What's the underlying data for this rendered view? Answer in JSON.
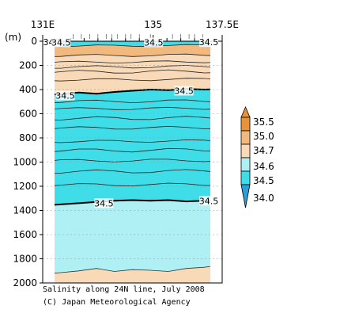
{
  "chart_data": {
    "type": "contour",
    "x_ticks": [
      "131E",
      "135",
      "137.5E"
    ],
    "y_unit": "(m)",
    "y_ticks": [
      0,
      200,
      400,
      600,
      800,
      1000,
      1200,
      1400,
      1600,
      1800,
      2000
    ],
    "x_range_deg": [
      131,
      137.5
    ],
    "y_range_m": [
      0,
      2000
    ],
    "bands": [
      {
        "label": "35.5",
        "color": "#e8933a"
      },
      {
        "label": "35.0",
        "color": "#f2b97f"
      },
      {
        "label": "34.7",
        "color": "#f8d9b8"
      },
      {
        "label": "34.6",
        "color": "#aef0f3"
      },
      {
        "label": "34.5",
        "color": "#3fdde8"
      },
      {
        "label": "34.0",
        "color": "#2f9ed9"
      }
    ],
    "contour_labels": [
      {
        "text": "34.5",
        "lon": 131.05,
        "depth": 5
      },
      {
        "text": "34.5",
        "lon": 131.35,
        "depth": 10
      },
      {
        "text": "34.5",
        "lon": 134.7,
        "depth": 10
      },
      {
        "text": "34.5",
        "lon": 136.7,
        "depth": 8
      },
      {
        "text": "34.5",
        "lon": 131.5,
        "depth": 450
      },
      {
        "text": "34.5",
        "lon": 135.8,
        "depth": 410
      },
      {
        "text": "34.5",
        "lon": 132.9,
        "depth": 1340
      },
      {
        "text": "34.5",
        "lon": 136.7,
        "depth": 1320
      }
    ],
    "salinity_345_upper_depth_m": [
      440,
      440,
      425,
      435,
      420,
      410,
      400,
      405,
      395,
      400,
      395
    ],
    "salinity_345_lower_depth_m": [
      1360,
      1350,
      1340,
      1330,
      1320,
      1315,
      1320,
      1315,
      1325,
      1320,
      1310
    ],
    "sample_lon": [
      131.0,
      131.65,
      132.3,
      132.95,
      133.6,
      134.25,
      134.9,
      135.55,
      136.2,
      136.85,
      137.5
    ],
    "caption_title": "Salinity along 24N line, July 2008",
    "caption_credit": "(C) Japan Meteorological Agency"
  }
}
